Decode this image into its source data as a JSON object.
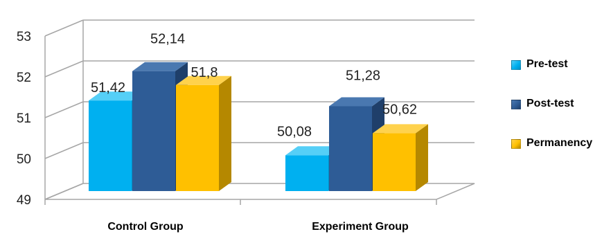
{
  "chart_data": {
    "type": "bar",
    "categories": [
      "Control Group",
      "Experiment Group"
    ],
    "series": [
      {
        "name": "Pre-test",
        "values": [
          51.42,
          50.08
        ],
        "labels": [
          "51,42",
          "50,08"
        ],
        "color": "#00B0F0",
        "side": "#0090C8",
        "top": "#55CFF7"
      },
      {
        "name": "Post-test",
        "values": [
          52.14,
          51.28
        ],
        "labels": [
          "52,14",
          "51,28"
        ],
        "color": "#2E5C96",
        "side": "#1F3F6A",
        "top": "#4A78B0"
      },
      {
        "name": "Permanency",
        "values": [
          51.8,
          50.62
        ],
        "labels": [
          "51,8",
          "50,62"
        ],
        "color": "#FFC000",
        "side": "#B58800",
        "top": "#FFD24D"
      }
    ],
    "y_ticks": [
      "49",
      "50",
      "51",
      "52",
      "53"
    ],
    "ylim": [
      49,
      53
    ],
    "grid": true,
    "legend_position": "right",
    "style": "3d-clustered-column"
  }
}
